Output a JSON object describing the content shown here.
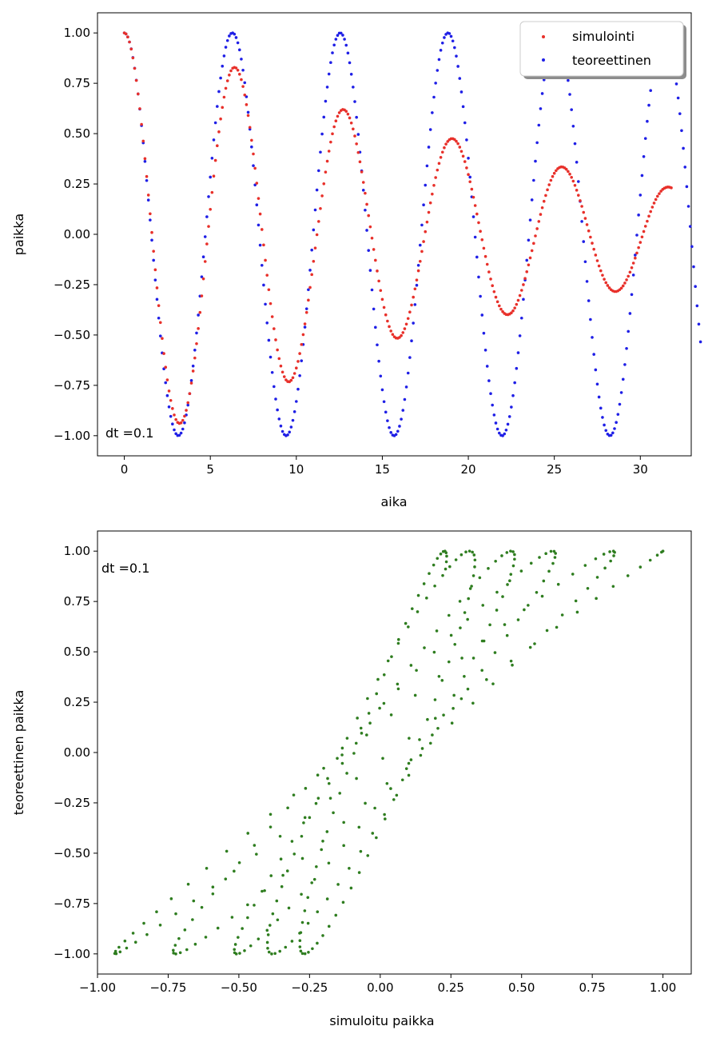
{
  "chart_data": [
    {
      "type": "scatter",
      "title": "",
      "xlabel": "aika",
      "ylabel": "paikka",
      "xlim": [
        -1.56,
        32.96
      ],
      "ylim": [
        -1.1,
        1.1
      ],
      "xticks": [
        0,
        5,
        10,
        15,
        20,
        25,
        30
      ],
      "yticks": [
        1.0,
        0.75,
        0.5,
        0.25,
        0.0,
        -0.25,
        -0.5,
        -0.75,
        -1.0
      ],
      "xtick_labels": [
        "0",
        "5",
        "10",
        "15",
        "20",
        "25",
        "30"
      ],
      "ytick_labels": [
        "1.00",
        "0.75",
        "0.50",
        "0.25",
        "0.00",
        "−0.25",
        "−0.50",
        "−0.75",
        "−1.00"
      ],
      "grid": false,
      "legend": {
        "position": "top-right",
        "entries": [
          {
            "name": "simulointi",
            "color": "#e8302a"
          },
          {
            "name": "teoreettinen",
            "color": "#1f1fe6"
          }
        ]
      },
      "annotation": "dt =0.1",
      "series": [
        {
          "name": "simulointi",
          "color": "#e8302a",
          "x_start": 0,
          "x_step": 0.1,
          "values": [
            1.0,
            0.995,
            0.98,
            0.955,
            0.92,
            0.876,
            0.824,
            0.764,
            0.697,
            0.624,
            0.546,
            0.463,
            0.376,
            0.287,
            0.195,
            0.102,
            0.009,
            -0.084,
            -0.176,
            -0.266,
            -0.354,
            -0.438,
            -0.517,
            -0.592,
            -0.66,
            -0.723,
            -0.778,
            -0.825,
            -0.865,
            -0.897,
            -0.92,
            -0.934,
            -0.939,
            -0.936,
            -0.924,
            -0.903,
            -0.874,
            -0.836,
            -0.791,
            -0.739,
            -0.679,
            -0.614,
            -0.543,
            -0.468,
            -0.388,
            -0.306,
            -0.221,
            -0.135,
            -0.048,
            0.039,
            0.124,
            0.208,
            0.289,
            0.367,
            0.44,
            0.509,
            0.573,
            0.63,
            0.681,
            0.725,
            0.762,
            0.791,
            0.812,
            0.825,
            0.829,
            0.826,
            0.815,
            0.795,
            0.768,
            0.734,
            0.692,
            0.644,
            0.59,
            0.531,
            0.467,
            0.399,
            0.328,
            0.254,
            0.178,
            0.101,
            0.024,
            -0.053,
            -0.129,
            -0.203,
            -0.275,
            -0.344,
            -0.409,
            -0.469,
            -0.524,
            -0.574,
            -0.617,
            -0.654,
            -0.684,
            -0.707,
            -0.723,
            -0.731,
            -0.732,
            -0.725,
            -0.712,
            -0.691,
            -0.664,
            -0.631,
            -0.592,
            -0.547,
            -0.498,
            -0.445,
            -0.388,
            -0.327,
            -0.264,
            -0.2,
            -0.134,
            -0.068,
            -0.002,
            0.064,
            0.128,
            0.191,
            0.251,
            0.309,
            0.363,
            0.413,
            0.458,
            0.499,
            0.534,
            0.563,
            0.586,
            0.604,
            0.615,
            0.62,
            0.618,
            0.611,
            0.597,
            0.578,
            0.553,
            0.523,
            0.488,
            0.449,
            0.406,
            0.36,
            0.31,
            0.258,
            0.204,
            0.149,
            0.093,
            0.037,
            -0.019,
            -0.075,
            -0.129,
            -0.182,
            -0.232,
            -0.279,
            -0.323,
            -0.363,
            -0.4,
            -0.431,
            -0.458,
            -0.48,
            -0.497,
            -0.509,
            -0.515,
            -0.516,
            -0.512,
            -0.503,
            -0.488,
            -0.469,
            -0.446,
            -0.418,
            -0.386,
            -0.351,
            -0.312,
            -0.271,
            -0.227,
            -0.181,
            -0.134,
            -0.085,
            -0.036,
            0.013,
            0.061,
            0.109,
            0.156,
            0.2,
            0.243,
            0.282,
            0.319,
            0.352,
            0.382,
            0.408,
            0.43,
            0.448,
            0.461,
            0.47,
            0.475,
            0.475,
            0.471,
            0.462,
            0.45,
            0.433,
            0.412,
            0.388,
            0.361,
            0.33,
            0.297,
            0.261,
            0.224,
            0.184,
            0.143,
            0.101,
            0.058,
            0.015,
            -0.027,
            -0.069,
            -0.11,
            -0.149,
            -0.187,
            -0.222,
            -0.255,
            -0.285,
            -0.312,
            -0.335,
            -0.355,
            -0.372,
            -0.384,
            -0.393,
            -0.398,
            -0.399,
            -0.396,
            -0.39,
            -0.38,
            -0.366,
            -0.348,
            -0.328,
            -0.304,
            -0.278,
            -0.25,
            -0.219,
            -0.186,
            -0.152,
            -0.117,
            -0.081,
            -0.045,
            -0.008,
            0.028,
            0.064,
            0.099,
            0.132,
            0.164,
            0.193,
            0.221,
            0.246,
            0.268,
            0.287,
            0.303,
            0.316,
            0.326,
            0.332,
            0.335,
            0.334,
            0.33,
            0.323,
            0.312,
            0.299,
            0.283,
            0.264,
            0.243,
            0.219,
            0.194,
            0.167,
            0.139,
            0.109,
            0.079,
            0.048,
            0.017,
            -0.014,
            -0.044,
            -0.074,
            -0.103,
            -0.131,
            -0.157,
            -0.181,
            -0.203,
            -0.223,
            -0.24,
            -0.254,
            -0.266,
            -0.275,
            -0.281,
            -0.284,
            -0.284,
            -0.281,
            -0.275,
            -0.267,
            -0.256,
            -0.242,
            -0.226,
            -0.208,
            -0.188,
            -0.166,
            -0.143,
            -0.118,
            -0.093,
            -0.066,
            -0.04,
            -0.013,
            0.014,
            0.04,
            0.065,
            0.09,
            0.113,
            0.135,
            0.155,
            0.173,
            0.189,
            0.202,
            0.214,
            0.223,
            0.229,
            0.233,
            0.235,
            0.234,
            0.231
          ]
        },
        {
          "name": "teoreettinen",
          "color": "#1f1fe6",
          "x_start": 0,
          "x_step": 0.1,
          "values": [
            1.0,
            0.995,
            0.98,
            0.955,
            0.921,
            0.878,
            0.825,
            0.765,
            0.697,
            0.622,
            0.54,
            0.454,
            0.362,
            0.267,
            0.17,
            0.071,
            -0.029,
            -0.129,
            -0.227,
            -0.323,
            -0.416,
            -0.505,
            -0.589,
            -0.668,
            -0.737,
            -0.801,
            -0.857,
            -0.904,
            -0.942,
            -0.971,
            -0.99,
            -0.999,
            -0.998,
            -0.987,
            -0.967,
            -0.936,
            -0.897,
            -0.848,
            -0.791,
            -0.726,
            -0.654,
            -0.575,
            -0.49,
            -0.401,
            -0.307,
            -0.211,
            -0.112,
            -0.012,
            0.087,
            0.187,
            0.284,
            0.378,
            0.469,
            0.554,
            0.635,
            0.709,
            0.776,
            0.835,
            0.886,
            0.929,
            0.962,
            0.985,
            0.997,
            1.0,
            0.994,
            0.977,
            0.951,
            0.916,
            0.87,
            0.815,
            0.753,
            0.683,
            0.606,
            0.522,
            0.434,
            0.341,
            0.245,
            0.146,
            0.046,
            -0.054,
            -0.154,
            -0.252,
            -0.347,
            -0.44,
            -0.526,
            -0.61,
            -0.686,
            -0.756,
            -0.818,
            -0.872,
            -0.917,
            -0.952,
            -0.979,
            -0.994,
            -1.0,
            -0.996,
            -0.982,
            -0.957,
            -0.924,
            -0.881,
            -0.83,
            -0.769,
            -0.702,
            -0.628,
            -0.547,
            -0.461,
            -0.37,
            -0.275,
            -0.178,
            -0.078,
            0.022,
            0.121,
            0.22,
            0.316,
            0.408,
            0.498,
            0.582,
            0.661,
            0.731,
            0.796,
            0.853,
            0.901,
            0.94,
            0.969,
            0.988,
            0.999,
            0.999,
            0.989,
            0.969,
            0.939,
            0.9,
            0.852,
            0.795,
            0.731,
            0.659,
            0.581,
            0.496,
            0.408,
            0.315,
            0.219,
            0.12,
            0.02,
            -0.08,
            -0.179,
            -0.276,
            -0.371,
            -0.462,
            -0.549,
            -0.63,
            -0.704,
            -0.772,
            -0.831,
            -0.883,
            -0.926,
            -0.96,
            -0.984,
            -0.997,
            -1.0,
            -0.994,
            -0.978,
            -0.953,
            -0.918,
            -0.874,
            -0.82,
            -0.758,
            -0.689,
            -0.612,
            -0.529,
            -0.441,
            -0.349,
            -0.253,
            -0.154,
            -0.054,
            0.046,
            0.146,
            0.244,
            0.34,
            0.433,
            0.52,
            0.604,
            0.681,
            0.751,
            0.814,
            0.868,
            0.914,
            0.95,
            0.977,
            0.993,
            1.0,
            0.997,
            0.983,
            0.96,
            0.927,
            0.885,
            0.834,
            0.774,
            0.707,
            0.634,
            0.554,
            0.469,
            0.378,
            0.284,
            0.186,
            0.087,
            -0.014,
            -0.113,
            -0.212,
            -0.308,
            -0.401,
            -0.491,
            -0.575,
            -0.655,
            -0.727,
            -0.791,
            -0.848,
            -0.897,
            -0.937,
            -0.967,
            -0.987,
            -0.998,
            -1.0,
            -0.991,
            -0.972,
            -0.943,
            -0.905,
            -0.858,
            -0.801,
            -0.737,
            -0.666,
            -0.588,
            -0.504,
            -0.416,
            -0.323,
            -0.227,
            -0.129,
            -0.029,
            0.071,
            0.171,
            0.268,
            0.363,
            0.455,
            0.542,
            0.624,
            0.699,
            0.767,
            0.827,
            0.879,
            0.923,
            0.957,
            0.982,
            0.996,
            1.0,
            0.995,
            0.981,
            0.956,
            0.922,
            0.878,
            0.826,
            0.764,
            0.695,
            0.619,
            0.537,
            0.45,
            0.358,
            0.262,
            0.164,
            0.064,
            -0.036,
            -0.136,
            -0.234,
            -0.33,
            -0.423,
            -0.512,
            -0.596,
            -0.673,
            -0.744,
            -0.808,
            -0.863,
            -0.909,
            -0.947,
            -0.974,
            -0.992,
            -0.999,
            -0.998,
            -0.986,
            -0.965,
            -0.934,
            -0.894,
            -0.844,
            -0.786,
            -0.72,
            -0.647,
            -0.567,
            -0.482,
            -0.393,
            -0.299,
            -0.202,
            -0.103,
            -0.004,
            0.096,
            0.195,
            0.292,
            0.386,
            0.476,
            0.561,
            0.641,
            0.714,
            0.78,
            0.838,
            0.889,
            0.931,
            0.964,
            0.986,
            0.998,
            1.0,
            0.992,
            0.975,
            0.947,
            0.911,
            0.865,
            0.81,
            0.747,
            0.677,
            0.599,
            0.515,
            0.427,
            0.334,
            0.237,
            0.139,
            0.039,
            -0.061,
            -0.161,
            -0.259,
            -0.355,
            -0.446,
            -0.534
          ]
        }
      ]
    },
    {
      "type": "scatter",
      "title": "",
      "xlabel": "simuloitu paikka",
      "ylabel": "teoreettinen paikka",
      "xlim": [
        -1.0,
        1.1
      ],
      "ylim": [
        -1.1,
        1.1
      ],
      "xticks": [
        -1.0,
        -0.75,
        -0.5,
        -0.25,
        0.0,
        0.25,
        0.5,
        0.75,
        1.0
      ],
      "yticks": [
        1.0,
        0.75,
        0.5,
        0.25,
        0.0,
        -0.25,
        -0.5,
        -0.75,
        -1.0
      ],
      "xtick_labels": [
        "−1.00",
        "−0.75",
        "−0.50",
        "−0.25",
        "0.00",
        "0.25",
        "0.50",
        "0.75",
        "1.00"
      ],
      "ytick_labels": [
        "1.00",
        "0.75",
        "0.50",
        "0.25",
        "0.00",
        "−0.25",
        "−0.50",
        "−0.75",
        "−1.00"
      ],
      "grid": false,
      "annotation": "dt =0.1",
      "point_color": "#2e7d1f",
      "series_source": "x = simulointi values, y = teoreettinen values (paired by index)"
    }
  ]
}
